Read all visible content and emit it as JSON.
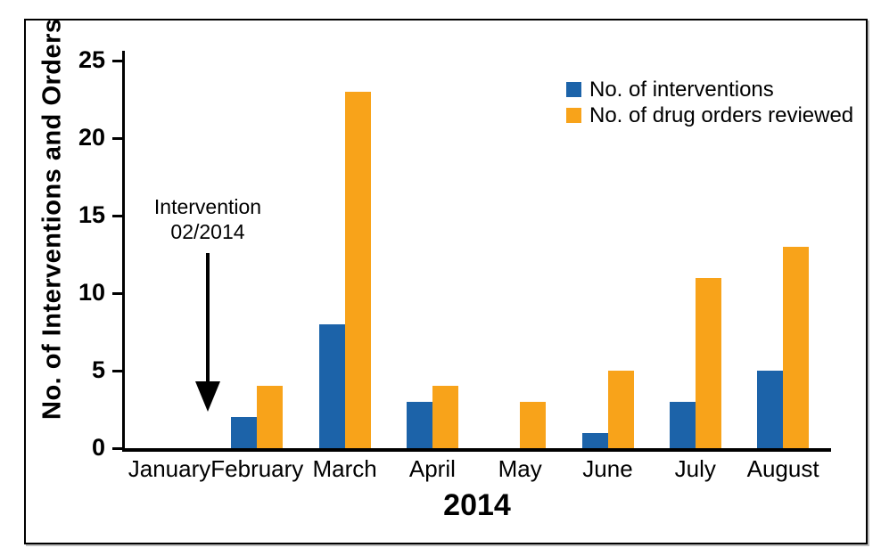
{
  "chart_data": {
    "type": "bar",
    "title": "",
    "categories": [
      "January",
      "February",
      "March",
      "April",
      "May",
      "June",
      "July",
      "August"
    ],
    "series": [
      {
        "name": "No. of interventions",
        "color": "#1C63A9",
        "values": [
          0,
          2,
          8,
          3,
          0,
          1,
          3,
          5
        ]
      },
      {
        "name": "No. of drug orders reviewed",
        "color": "#F8A31A",
        "values": [
          0,
          4,
          23,
          4,
          3,
          5,
          11,
          13
        ]
      }
    ],
    "xlabel": "2014",
    "ylabel": "No. of Interventions and Orders",
    "ylim": [
      0,
      25
    ],
    "yticks": [
      0,
      5,
      10,
      15,
      20,
      25
    ],
    "grid": false,
    "legend_position": "top-right",
    "annotation": {
      "line1": "Intervention",
      "line2": "02/2014",
      "target_category": "February"
    }
  },
  "colors": {
    "axis": "#000000",
    "background": "#ffffff"
  }
}
